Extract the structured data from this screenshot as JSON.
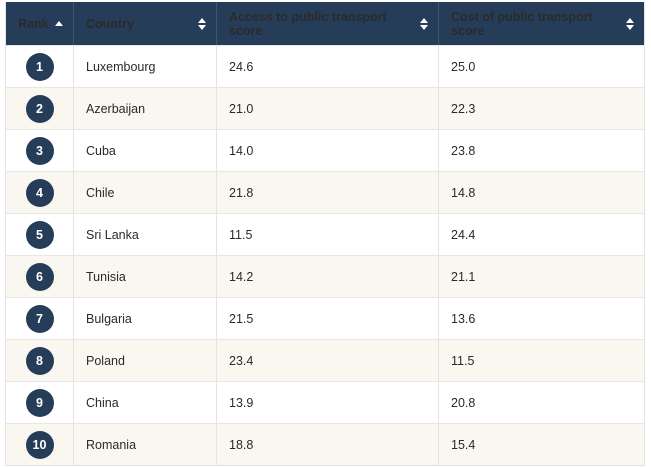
{
  "table": {
    "headers": [
      "Rank",
      "Country",
      "Access to public transport score",
      "Cost of public transport score"
    ],
    "rows": [
      [
        1,
        "Luxembourg",
        "24.6",
        "25.0"
      ],
      [
        2,
        "Azerbaijan",
        "21.0",
        "22.3"
      ],
      [
        3,
        "Cuba",
        "14.0",
        "23.8"
      ],
      [
        4,
        "Chile",
        "21.8",
        "14.8"
      ],
      [
        5,
        "Sri Lanka",
        "11.5",
        "24.4"
      ],
      [
        6,
        "Tunisia",
        "14.2",
        "21.1"
      ],
      [
        7,
        "Bulgaria",
        "21.5",
        "13.6"
      ],
      [
        8,
        "Poland",
        "23.4",
        "11.5"
      ],
      [
        9,
        "China",
        "13.9",
        "20.8"
      ],
      [
        10,
        "Romania",
        "18.8",
        "15.4"
      ]
    ]
  }
}
